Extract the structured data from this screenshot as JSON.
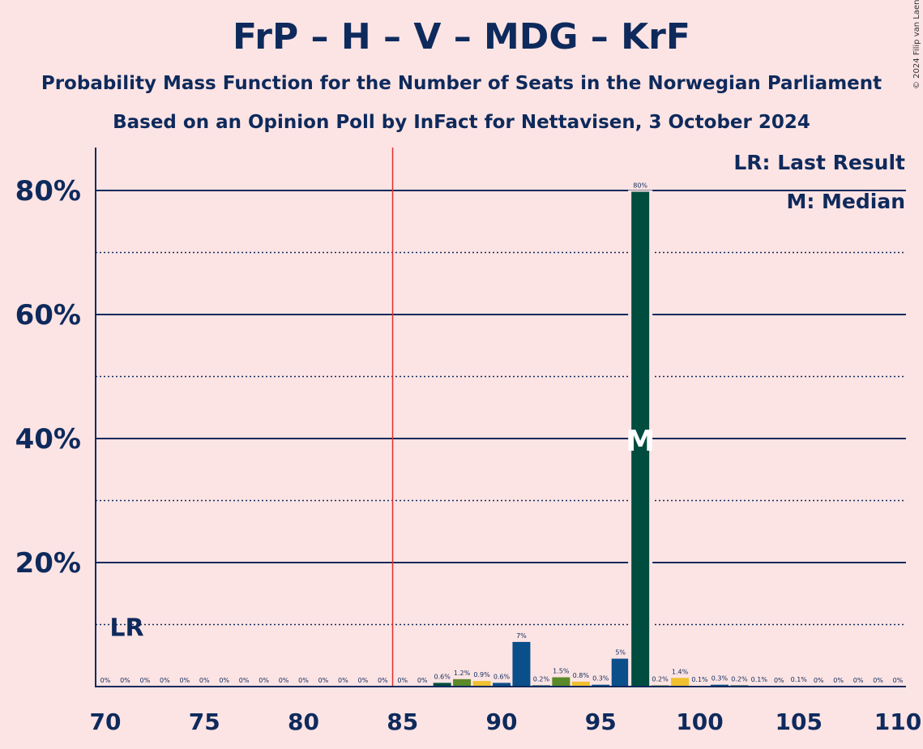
{
  "title": "FrP – H – V – MDG – KrF",
  "subtitle1": "Probability Mass Function for the Number of Seats in the Norwegian Parliament",
  "subtitle2": "Based on an Opinion Poll by InFact for Nettavisen, 3 October 2024",
  "copyright": "© 2024 Filip van Laenen",
  "legend": {
    "last_result": "LR: Last Result",
    "median": "M: Median"
  },
  "chart_data": {
    "type": "bar",
    "xlabel": "",
    "ylabel": "",
    "xlim": [
      70,
      110
    ],
    "ylim": [
      0,
      87
    ],
    "x_ticks": [
      70,
      75,
      80,
      85,
      90,
      95,
      100,
      105,
      110
    ],
    "y_ticks": [
      {
        "value": 20,
        "label": "20%"
      },
      {
        "value": 40,
        "label": "40%"
      },
      {
        "value": 60,
        "label": "60%"
      },
      {
        "value": 80,
        "label": "80%"
      }
    ],
    "minor_gridlines": [
      10,
      30,
      50,
      70
    ],
    "majority_line": 84.5,
    "last_result": {
      "seat": 71,
      "label": "LR"
    },
    "median": {
      "seat": 97,
      "label": "M"
    },
    "colors": {
      "navy": "#0e2a5c",
      "blue": "#0b4f8a",
      "green": "#5a8a2a",
      "yellow": "#f0c030",
      "darkgreen": "#004d3f",
      "red": "#e03030",
      "background": "#fde4e4"
    },
    "bars": [
      {
        "seat": 70,
        "value": 0,
        "label": "0%",
        "color": "blue"
      },
      {
        "seat": 71,
        "value": 0,
        "label": "0%",
        "color": "blue"
      },
      {
        "seat": 72,
        "value": 0,
        "label": "0%",
        "color": "blue"
      },
      {
        "seat": 73,
        "value": 0,
        "label": "0%",
        "color": "blue"
      },
      {
        "seat": 74,
        "value": 0,
        "label": "0%",
        "color": "blue"
      },
      {
        "seat": 75,
        "value": 0,
        "label": "0%",
        "color": "blue"
      },
      {
        "seat": 76,
        "value": 0,
        "label": "0%",
        "color": "blue"
      },
      {
        "seat": 77,
        "value": 0,
        "label": "0%",
        "color": "blue"
      },
      {
        "seat": 78,
        "value": 0,
        "label": "0%",
        "color": "blue"
      },
      {
        "seat": 79,
        "value": 0,
        "label": "0%",
        "color": "blue"
      },
      {
        "seat": 80,
        "value": 0,
        "label": "0%",
        "color": "blue"
      },
      {
        "seat": 81,
        "value": 0,
        "label": "0%",
        "color": "blue"
      },
      {
        "seat": 82,
        "value": 0,
        "label": "0%",
        "color": "blue"
      },
      {
        "seat": 83,
        "value": 0,
        "label": "0%",
        "color": "blue"
      },
      {
        "seat": 84,
        "value": 0,
        "label": "0%",
        "color": "blue"
      },
      {
        "seat": 85,
        "value": 0,
        "label": "0%",
        "color": "blue"
      },
      {
        "seat": 86,
        "value": 0,
        "label": "0%",
        "color": "blue"
      },
      {
        "seat": 87,
        "value": 0.6,
        "label": "0.6%",
        "color": "darkgreen"
      },
      {
        "seat": 88,
        "value": 1.2,
        "label": "1.2%",
        "color": "green"
      },
      {
        "seat": 89,
        "value": 0.9,
        "label": "0.9%",
        "color": "yellow"
      },
      {
        "seat": 90,
        "value": 0.6,
        "label": "0.6%",
        "color": "blue"
      },
      {
        "seat": 91,
        "value": 7.2,
        "label": "7%",
        "color": "blue"
      },
      {
        "seat": 92,
        "value": 0.2,
        "label": "0.2%",
        "color": "darkgreen"
      },
      {
        "seat": 93,
        "value": 1.5,
        "label": "1.5%",
        "color": "green"
      },
      {
        "seat": 94,
        "value": 0.8,
        "label": "0.8%",
        "color": "yellow"
      },
      {
        "seat": 95,
        "value": 0.3,
        "label": "0.3%",
        "color": "blue"
      },
      {
        "seat": 96,
        "value": 4.5,
        "label": "5%",
        "color": "blue"
      },
      {
        "seat": 97,
        "value": 79.8,
        "label": "80%",
        "color": "darkgreen"
      },
      {
        "seat": 98,
        "value": 0.2,
        "label": "0.2%",
        "color": "green"
      },
      {
        "seat": 99,
        "value": 1.4,
        "label": "1.4%",
        "color": "yellow"
      },
      {
        "seat": 100,
        "value": 0.1,
        "label": "0.1%",
        "color": "blue"
      },
      {
        "seat": 101,
        "value": 0.3,
        "label": "0.3%",
        "color": "blue"
      },
      {
        "seat": 102,
        "value": 0.2,
        "label": "0.2%",
        "color": "darkgreen"
      },
      {
        "seat": 103,
        "value": 0.1,
        "label": "0.1%",
        "color": "green"
      },
      {
        "seat": 104,
        "value": 0,
        "label": "0%",
        "color": "yellow"
      },
      {
        "seat": 105,
        "value": 0.1,
        "label": "0.1%",
        "color": "blue"
      },
      {
        "seat": 106,
        "value": 0,
        "label": "0%",
        "color": "blue"
      },
      {
        "seat": 107,
        "value": 0,
        "label": "0%",
        "color": "blue"
      },
      {
        "seat": 108,
        "value": 0,
        "label": "0%",
        "color": "blue"
      },
      {
        "seat": 109,
        "value": 0,
        "label": "0%",
        "color": "blue"
      },
      {
        "seat": 110,
        "value": 0,
        "label": "0%",
        "color": "blue"
      }
    ]
  }
}
